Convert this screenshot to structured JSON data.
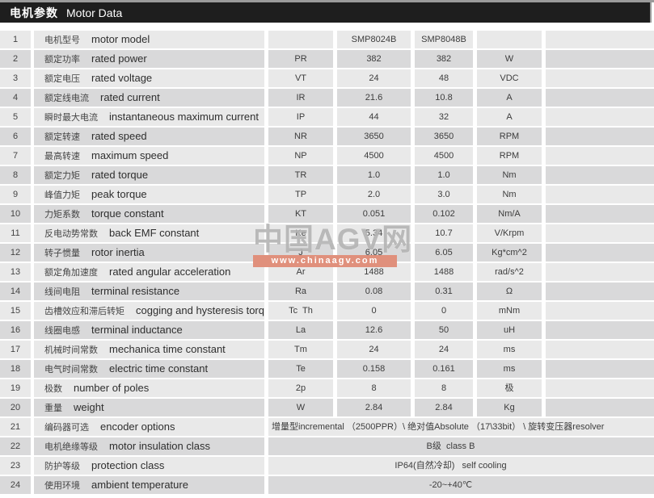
{
  "header": {
    "title_cn": "电机参数",
    "title_en": "Motor Data"
  },
  "watermark": {
    "brand": "中国AGV网",
    "url": "www.chinaagv.com",
    "bar_color": "#e0907c"
  },
  "models": {
    "model_a": "SMP8024B",
    "model_b": "SMP8048B"
  },
  "table": {
    "rows": [
      {
        "num": "1",
        "cn": "电机型号",
        "en": "motor model",
        "symbol": "",
        "v1": "SMP8024B",
        "v2": "SMP8048B",
        "unit": ""
      },
      {
        "num": "2",
        "cn": "额定功率",
        "en": "rated power",
        "symbol": "PR",
        "v1": "382",
        "v2": "382",
        "unit": "W"
      },
      {
        "num": "3",
        "cn": "额定电压",
        "en": "rated voltage",
        "symbol": "VT",
        "v1": "24",
        "v2": "48",
        "unit": "VDC"
      },
      {
        "num": "4",
        "cn": "额定线电流",
        "en": "rated current",
        "symbol": "IR",
        "v1": "21.6",
        "v2": "10.8",
        "unit": "A"
      },
      {
        "num": "5",
        "cn": "瞬时最大电流",
        "en": "instantaneous maximum current",
        "symbol": "IP",
        "v1": "44",
        "v2": "32",
        "unit": "A"
      },
      {
        "num": "6",
        "cn": "额定转速",
        "en": "rated speed",
        "symbol": "NR",
        "v1": "3650",
        "v2": "3650",
        "unit": "RPM"
      },
      {
        "num": "7",
        "cn": "最高转速",
        "en": "maximum speed",
        "symbol": "NP",
        "v1": "4500",
        "v2": "4500",
        "unit": "RPM"
      },
      {
        "num": "8",
        "cn": "额定力矩",
        "en": "rated torque",
        "symbol": "TR",
        "v1": "1.0",
        "v2": "1.0",
        "unit": "Nm"
      },
      {
        "num": "9",
        "cn": "峰值力矩",
        "en": "peak torque",
        "symbol": "TP",
        "v1": "2.0",
        "v2": "3.0",
        "unit": "Nm"
      },
      {
        "num": "10",
        "cn": "力矩系数",
        "en": "torque constant",
        "symbol": "KT",
        "v1": "0.051",
        "v2": "0.102",
        "unit": "Nm/A"
      },
      {
        "num": "11",
        "cn": "反电动势常数",
        "en": "back EMF constant",
        "symbol": "Ke",
        "v1": "5.34",
        "v2": "10.7",
        "unit": "V/Krpm"
      },
      {
        "num": "12",
        "cn": "转子惯量",
        "en": "rotor inertia",
        "symbol": "J",
        "v1": "6.05",
        "v2": "6.05",
        "unit": "Kg*cm^2"
      },
      {
        "num": "13",
        "cn": "额定角加速度",
        "en": "rated angular acceleration",
        "symbol": "Ar",
        "v1": "1488",
        "v2": "1488",
        "unit": "rad/s^2"
      },
      {
        "num": "14",
        "cn": "线间电阻",
        "en": "terminal resistance",
        "symbol": "Ra",
        "v1": "0.08",
        "v2": "0.31",
        "unit": "Ω"
      },
      {
        "num": "15",
        "cn": "齿槽效应和滞后转矩",
        "en": "cogging and hysteresis torque",
        "symbol": "Tc  Th",
        "v1": "0",
        "v2": "0",
        "unit": "mNm"
      },
      {
        "num": "16",
        "cn": "线圈电感",
        "en": "terminal inductance",
        "symbol": "La",
        "v1": "12.6",
        "v2": "50",
        "unit": "uH"
      },
      {
        "num": "17",
        "cn": "机械时间常数",
        "en": "mechanica time constant",
        "symbol": "Tm",
        "v1": "24",
        "v2": "24",
        "unit": "ms"
      },
      {
        "num": "18",
        "cn": "电气时间常数",
        "en": "electric time constant",
        "symbol": "Te",
        "v1": "0.158",
        "v2": "0.161",
        "unit": "ms"
      },
      {
        "num": "19",
        "cn": "极数",
        "en": "number of poles",
        "symbol": "2p",
        "v1": "8",
        "v2": "8",
        "unit": "极"
      },
      {
        "num": "20",
        "cn": "重量",
        "en": "weight",
        "symbol": "W",
        "v1": "2.84",
        "v2": "2.84",
        "unit": "Kg"
      },
      {
        "num": "21",
        "cn": "编码器可选",
        "en": "encoder options",
        "merged": "增量型incremental （2500PPR）\\ 绝对值Absolute （17\\33bit） \\ 旋转变压器resolver",
        "align": "left"
      },
      {
        "num": "22",
        "cn": "电机绝缘等级",
        "en": "motor insulation class",
        "merged": "B级  class B",
        "align": "center"
      },
      {
        "num": "23",
        "cn": "防护等级",
        "en": "protection class",
        "merged": "IP64(自然冷却)   self cooling",
        "align": "center"
      },
      {
        "num": "24",
        "cn": "使用环境",
        "en": "ambient temperature",
        "merged": "-20~+40℃",
        "align": "center"
      }
    ]
  }
}
